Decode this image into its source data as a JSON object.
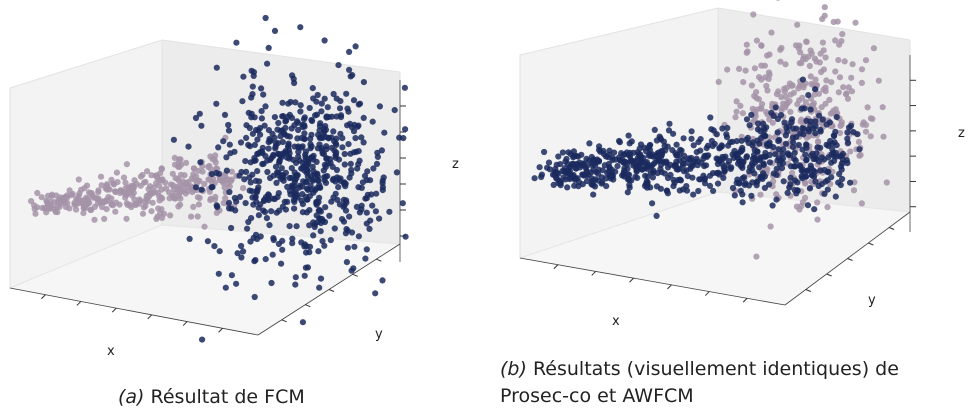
{
  "colors": {
    "cluster_light": "#a593a8",
    "cluster_dark": "#1b2a5e",
    "pane_left": "#f3f3f3",
    "pane_right": "#ececec",
    "pane_floor": "#f6f6f6"
  },
  "chart_data": [
    {
      "type": "scatter",
      "projection": "3d",
      "xlabel": "x",
      "ylabel": "y",
      "zlabel": "z",
      "caption_tag": "(a)",
      "caption_text": "Résultat de FCM",
      "grid": false,
      "series": [
        {
          "color": "#a593a8",
          "cloud": "elongated band"
        },
        {
          "color": "#1b2a5e",
          "cloud": "dense ball"
        }
      ]
    },
    {
      "type": "scatter",
      "projection": "3d",
      "xlabel": "x",
      "ylabel": "y",
      "zlabel": "z",
      "caption_tag": "(b)",
      "caption_text": "Résultats (visuellement identiques) de Prosec-co et AWFCM",
      "grid": false,
      "series": [
        {
          "color": "#a593a8",
          "cloud": "dense ball"
        },
        {
          "color": "#1b2a5e",
          "cloud": "elongated band"
        }
      ]
    }
  ]
}
